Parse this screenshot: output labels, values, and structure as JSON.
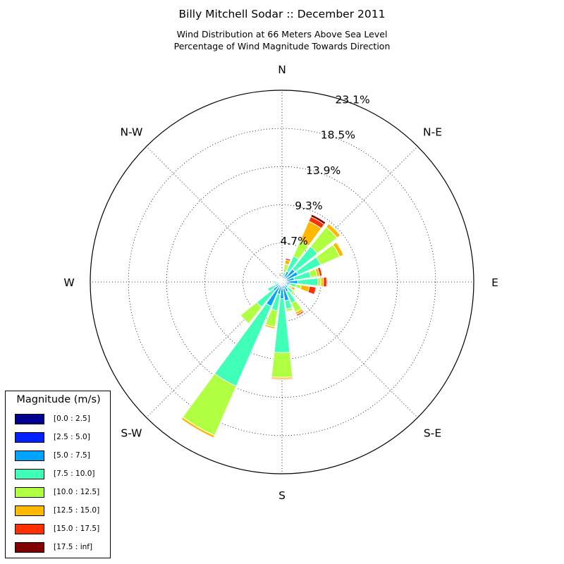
{
  "title": "Billy Mitchell Sodar :: December 2011",
  "subtitle_line1": "Wind Distribution at 66 Meters Above Sea Level",
  "subtitle_line2": "Percentage of Wind Magnitude Towards Direction",
  "direction_labels": [
    "N",
    "N-E",
    "E",
    "S-E",
    "S",
    "S-W",
    "W",
    "N-W"
  ],
  "legend": {
    "title": "Magnitude (m/s)",
    "bins": [
      {
        "label": "[0.0 : 2.5]",
        "color": "#00008f"
      },
      {
        "label": "[2.5 : 5.0]",
        "color": "#0020ff"
      },
      {
        "label": "[5.0 : 7.5]",
        "color": "#00a4ff"
      },
      {
        "label": "[7.5 : 10.0]",
        "color": "#40ffb8"
      },
      {
        "label": "[10.0 : 12.5]",
        "color": "#b0ff40"
      },
      {
        "label": "[12.5 : 15.0]",
        "color": "#ffb800"
      },
      {
        "label": "[15.0 : 17.5]",
        "color": "#ff3000"
      },
      {
        "label": "[17.5 : inf]",
        "color": "#800000"
      }
    ]
  },
  "chart_data": {
    "type": "windrose",
    "title": "Billy Mitchell Sodar :: December 2011",
    "radial_unit": "%",
    "radial_ticks": [
      4.7,
      9.3,
      13.9,
      18.5,
      23.1
    ],
    "radial_tick_labels": [
      "4.7%",
      "9.3%",
      "13.9%",
      "18.5%",
      "23.1%"
    ],
    "radial_max": 23.1,
    "sector_width_deg": 15,
    "grid": true,
    "legend_position": "bottom-left",
    "sectors": [
      {
        "dir_deg": 0,
        "values": [
          0.05,
          0.1,
          0.1,
          0.1,
          0.1,
          0.05,
          0.1,
          0.0
        ]
      },
      {
        "dir_deg": 15,
        "values": [
          0.1,
          0.2,
          0.4,
          0.5,
          1.0,
          0.5,
          0.2,
          0.0
        ]
      },
      {
        "dir_deg": 30,
        "values": [
          0.1,
          0.3,
          1.0,
          2.0,
          2.0,
          2.6,
          0.6,
          0.3
        ]
      },
      {
        "dir_deg": 45,
        "values": [
          0.1,
          0.4,
          1.5,
          3.5,
          3.0,
          0.5,
          0.0,
          0.0
        ]
      },
      {
        "dir_deg": 60,
        "values": [
          0.1,
          0.5,
          1.5,
          3.0,
          2.5,
          0.5,
          0.0,
          0.0
        ]
      },
      {
        "dir_deg": 75,
        "values": [
          0.1,
          0.4,
          1.0,
          2.0,
          0.8,
          0.3,
          0.3,
          0.0
        ]
      },
      {
        "dir_deg": 90,
        "values": [
          0.1,
          0.5,
          1.3,
          2.4,
          0.4,
          0.3,
          0.4,
          0.1
        ]
      },
      {
        "dir_deg": 105,
        "values": [
          0.05,
          0.3,
          0.6,
          0.8,
          0.6,
          1.0,
          0.8,
          0.0
        ]
      },
      {
        "dir_deg": 120,
        "values": [
          0.05,
          0.2,
          0.3,
          0.4,
          0.4,
          0.4,
          0.0,
          0.0
        ]
      },
      {
        "dir_deg": 135,
        "values": [
          0.1,
          0.3,
          0.5,
          0.8,
          0.3,
          0.0,
          0.0,
          0.0
        ]
      },
      {
        "dir_deg": 150,
        "values": [
          0.1,
          0.4,
          0.8,
          1.5,
          1.2,
          0.3,
          0.2,
          0.0
        ]
      },
      {
        "dir_deg": 165,
        "values": [
          0.2,
          0.6,
          1.5,
          1.0,
          0.3,
          0.1,
          0.0,
          0.0
        ]
      },
      {
        "dir_deg": 180,
        "values": [
          0.1,
          0.4,
          1.5,
          6.5,
          3.0,
          0.2,
          0.1,
          0.0
        ]
      },
      {
        "dir_deg": 195,
        "values": [
          0.1,
          0.4,
          1.0,
          2.0,
          2.0,
          0.2,
          0.0,
          0.0
        ]
      },
      {
        "dir_deg": 210,
        "values": [
          0.2,
          0.5,
          2.5,
          10.5,
          6.5,
          0.3,
          0.0,
          0.0
        ]
      },
      {
        "dir_deg": 225,
        "values": [
          0.1,
          0.3,
          1.0,
          2.5,
          2.5,
          0.0,
          0.0,
          0.0
        ]
      },
      {
        "dir_deg": 240,
        "values": [
          0.1,
          0.3,
          0.5,
          1.0,
          0.0,
          0.0,
          0.0,
          0.0
        ]
      },
      {
        "dir_deg": 255,
        "values": [
          0.1,
          0.2,
          0.3,
          0.3,
          0.0,
          0.0,
          0.0,
          0.0
        ]
      },
      {
        "dir_deg": 270,
        "values": [
          0.1,
          0.2,
          0.3,
          0.4,
          0.0,
          0.0,
          0.0,
          0.0
        ]
      },
      {
        "dir_deg": 285,
        "values": [
          0.05,
          0.1,
          0.2,
          0.1,
          0.0,
          0.0,
          0.0,
          0.0
        ]
      },
      {
        "dir_deg": 300,
        "values": [
          0.05,
          0.1,
          0.2,
          0.1,
          0.0,
          0.0,
          0.0,
          0.0
        ]
      },
      {
        "dir_deg": 315,
        "values": [
          0.05,
          0.1,
          0.2,
          0.2,
          0.1,
          0.0,
          0.0,
          0.0
        ]
      },
      {
        "dir_deg": 330,
        "values": [
          0.05,
          0.05,
          0.1,
          0.1,
          0.05,
          0.0,
          0.0,
          0.0
        ]
      },
      {
        "dir_deg": 345,
        "values": [
          0.05,
          0.1,
          0.1,
          0.2,
          0.2,
          0.1,
          0.2,
          0.1
        ]
      }
    ]
  }
}
